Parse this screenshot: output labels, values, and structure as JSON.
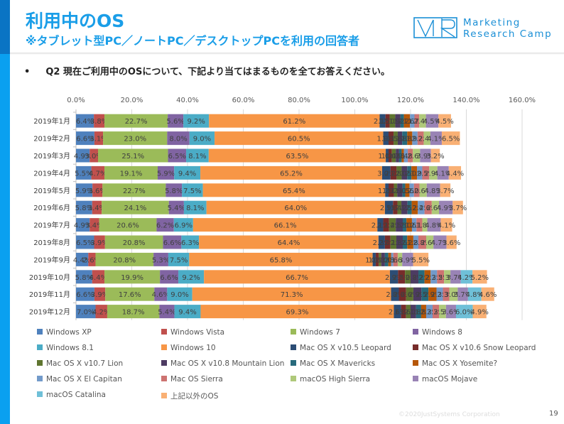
{
  "header": {
    "title": "利用中のOS",
    "subtitle": "※タブレット型PC／ノートPC／デスクトップPCを利用の回答者",
    "logo_line1": "Marketing",
    "logo_line2": "Research Camp",
    "question_bullet": "•",
    "question": "Q2 現在ご利用中のOSについて、下記より当てはまるものを全てお答えください。"
  },
  "footer": {
    "copyright": "©2020JustSystems Corporation",
    "page_number": "19"
  },
  "chart_data": {
    "type": "bar",
    "orientation": "horizontal",
    "stacked": true,
    "title": "",
    "xlabel": "",
    "ylabel": "",
    "xlim": [
      0,
      160
    ],
    "xticks": [
      "0.0%",
      "20.0%",
      "40.0%",
      "60.0%",
      "80.0%",
      "100.0%",
      "120.0%",
      "140.0%",
      "160.0%"
    ],
    "grid": true,
    "legend_position": "bottom",
    "categories": [
      "2019年1月",
      "2019年2月",
      "2019年3月",
      "2019年4月",
      "2019年5月",
      "2019年6月",
      "2019年7月",
      "2019年8月",
      "2019年9月",
      "2019年10月",
      "2019年11月",
      "2019年12月"
    ],
    "series": [
      {
        "name": "Windows XP",
        "color": "#4f81bd",
        "values": [
          6.4,
          6.6,
          4.9,
          5.5,
          5.9,
          5.8,
          4.9,
          6.5,
          4.4,
          5.8,
          6.6,
          7.0
        ]
      },
      {
        "name": "Windows Vista",
        "color": "#c0504d",
        "values": [
          3.8,
          3.1,
          3.0,
          4.7,
          3.6,
          3.4,
          3.4,
          3.9,
          2.6,
          4.4,
          3.9,
          4.2
        ]
      },
      {
        "name": "Windows 7",
        "color": "#9bbb59",
        "values": [
          22.7,
          23.0,
          25.1,
          19.1,
          22.7,
          24.1,
          20.6,
          20.8,
          20.8,
          19.9,
          17.6,
          18.7
        ]
      },
      {
        "name": "Windows 8",
        "color": "#8064a2",
        "values": [
          5.6,
          8.0,
          6.5,
          5.9,
          5.8,
          5.4,
          6.2,
          6.6,
          5.3,
          6.6,
          4.6,
          5.4
        ]
      },
      {
        "name": "Windows 8.1",
        "color": "#4bacc6",
        "values": [
          9.2,
          9.0,
          8.1,
          9.4,
          7.5,
          8.1,
          6.9,
          6.3,
          7.5,
          9.2,
          9.0,
          9.4
        ]
      },
      {
        "name": "Windows 10",
        "color": "#f79646",
        "values": [
          61.2,
          60.5,
          63.5,
          65.2,
          65.4,
          64.0,
          66.1,
          64.4,
          65.8,
          66.7,
          71.3,
          69.3
        ]
      },
      {
        "name": "Mac OS X v10.5 Leopard",
        "color": "#2c4d75",
        "values": [
          2.1,
          1.9,
          1.0,
          3.0,
          1.2,
          2.9,
          2.1,
          2.3,
          1.1,
          2.9,
          2.8,
          2.6
        ]
      },
      {
        "name": "Mac OS X v10.6 Snow Leopard",
        "color": "#772c2a",
        "values": [
          1.5,
          1.8,
          1.2,
          2.2,
          1.9,
          1.6,
          2.1,
          2.0,
          1.1,
          2.5,
          2.6,
          1.8
        ]
      },
      {
        "name": "Mac OS X v10.7 Lion",
        "color": "#5f7530",
        "values": [
          2.0,
          1.5,
          1.4,
          1.8,
          1.2,
          1.4,
          2.4,
          2.1,
          0.9,
          2.0,
          2.6,
          1.6
        ]
      },
      {
        "name": "Mac OS X v10.8 Mountain Lion",
        "color": "#4d3b62",
        "values": [
          1.9,
          1.6,
          1.2,
          2.0,
          1.9,
          2.2,
          2.5,
          2.3,
          1.3,
          2.8,
          2.9,
          2.0
        ]
      },
      {
        "name": "Mac OS X Mavericks",
        "color": "#276a7c",
        "values": [
          1.2,
          1.8,
          0.9,
          1.5,
          1.0,
          1.5,
          1.3,
          1.6,
          1.2,
          2.2,
          2.5,
          1.8
        ]
      },
      {
        "name": "Mac OS X Yosemite?",
        "color": "#b65708",
        "values": [
          2.2,
          1.8,
          0.8,
          2.0,
          1.5,
          2.2,
          2.0,
          2.2,
          1.0,
          2.2,
          2.9,
          1.8
        ]
      },
      {
        "name": "Mac OS X El Capitan",
        "color": "#729aca",
        "values": [
          1.6,
          1.9,
          1.4,
          1.9,
          1.6,
          2.4,
          1.6,
          1.8,
          0.8,
          2.3,
          2.3,
          2.3
        ]
      },
      {
        "name": "Mac OS Sierra",
        "color": "#cd7371",
        "values": [
          1.7,
          2.2,
          1.8,
          2.5,
          2.0,
          2.6,
          2.1,
          2.8,
          1.6,
          2.5,
          2.3,
          2.3
        ]
      },
      {
        "name": "macOS High Sierra",
        "color": "#afc97a",
        "values": [
          2.4,
          2.4,
          2.6,
          2.9,
          2.6,
          2.6,
          1.8,
          2.6,
          1.6,
          2.3,
          3.0,
          2.5
        ]
      },
      {
        "name": "macOS Mojave",
        "color": "#9983b5",
        "values": [
          4.5,
          4.1,
          3.9,
          4.1,
          4.8,
          4.9,
          4.8,
          4.7,
          3.9,
          3.7,
          3.7,
          3.6
        ]
      },
      {
        "name": "macOS Catalina",
        "color": "#6fc0d8",
        "values": [
          0,
          0,
          0,
          0,
          0,
          0,
          0,
          0,
          0,
          4.2,
          4.8,
          6.0
        ]
      },
      {
        "name": "上記以外のOS",
        "color": "#f9b074",
        "values": [
          4.5,
          6.5,
          3.2,
          4.4,
          3.7,
          3.7,
          4.1,
          3.6,
          5.5,
          5.2,
          4.6,
          4.9
        ]
      }
    ]
  }
}
